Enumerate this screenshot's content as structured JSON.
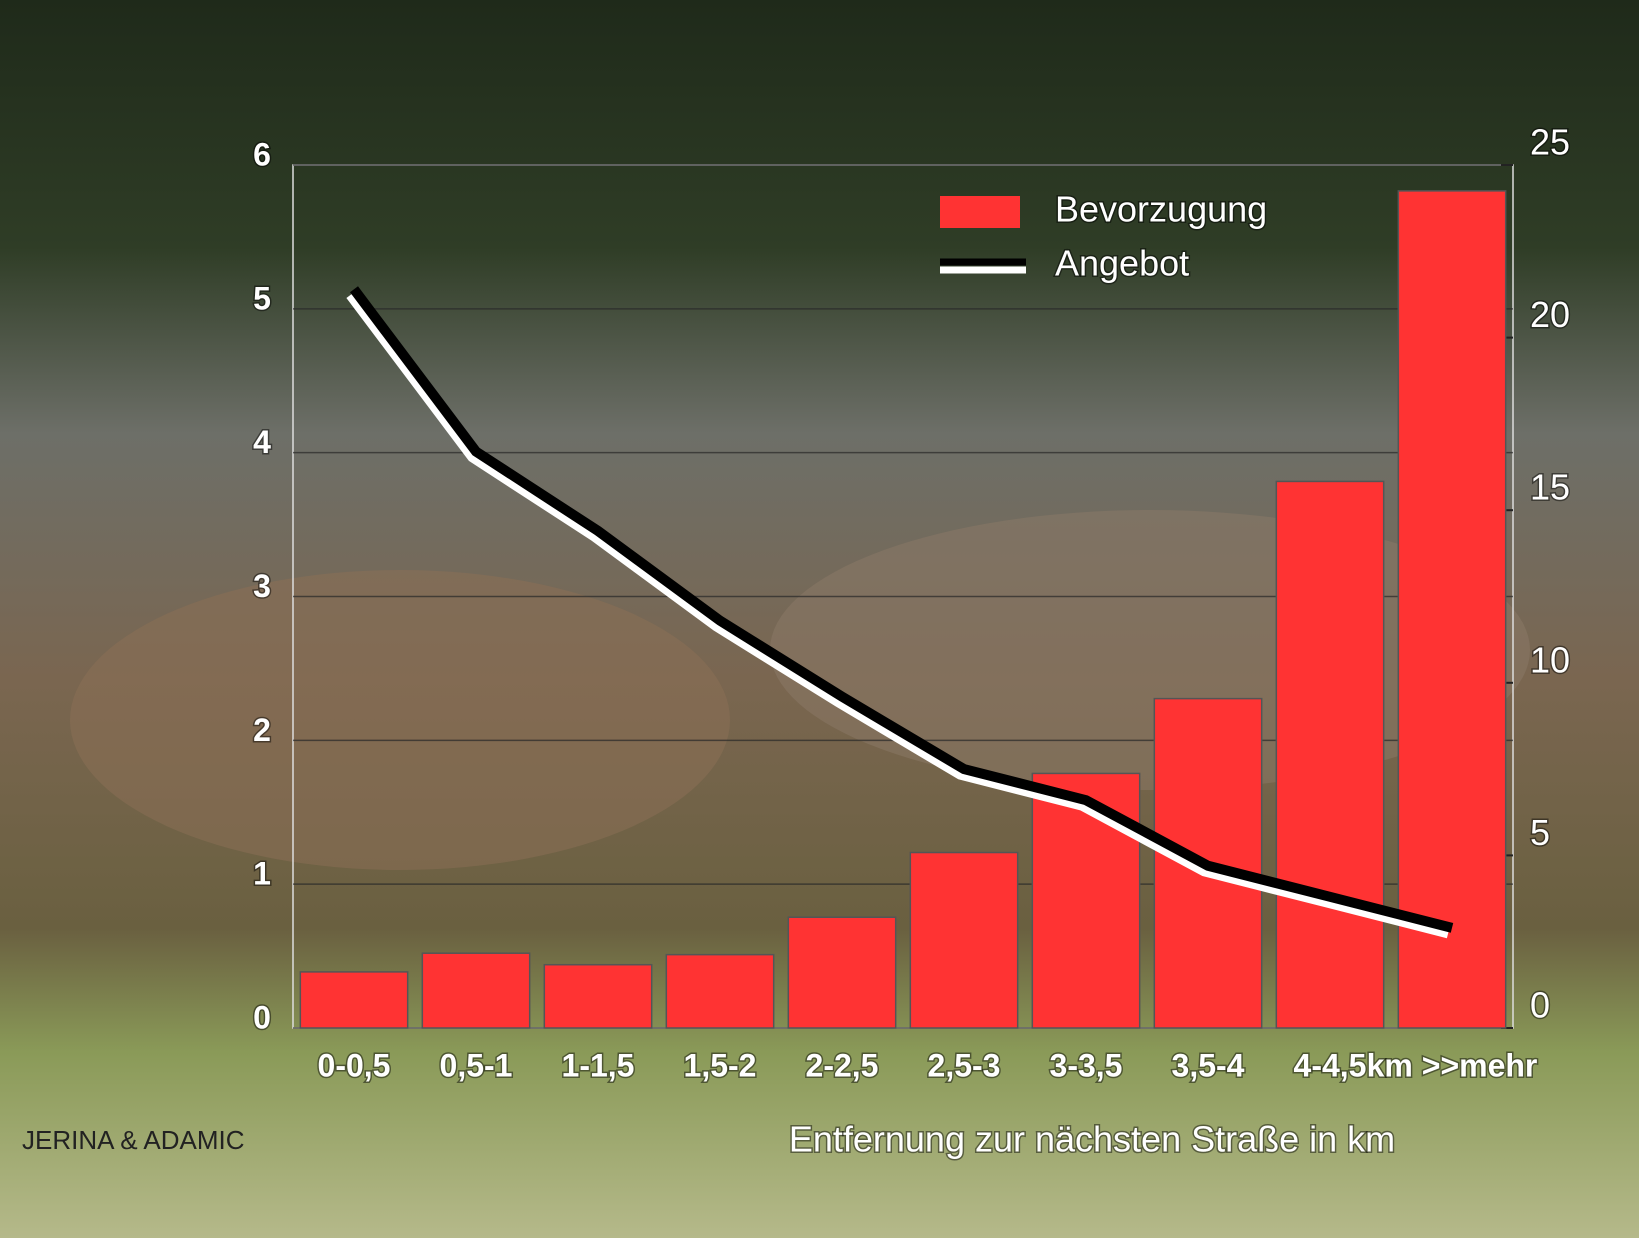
{
  "chart_data": {
    "type": "bar",
    "categories": [
      "0-0,5",
      "0,5-1",
      "1-1,5",
      "1,5-2",
      "2-2,5",
      "2,5-3",
      "3-3,5",
      "3,5-4",
      "4-4,5",
      "km >>mehr"
    ],
    "series": [
      {
        "name": "Bevorzugung",
        "type": "bar",
        "color": "#ff3333",
        "values": [
          0.39,
          0.52,
          0.44,
          0.51,
          0.77,
          1.22,
          1.77,
          2.29,
          3.8,
          5.82
        ]
      },
      {
        "name": "Angebot",
        "type": "line",
        "axis": "y2",
        "color": "#000000",
        "values": [
          21.4,
          16.7,
          14.4,
          11.8,
          9.6,
          7.5,
          6.6,
          4.7,
          3.8,
          2.9
        ]
      }
    ],
    "ylim": [
      0,
      6
    ],
    "yticks": [
      0,
      1,
      2,
      3,
      4,
      5,
      6
    ],
    "y2lim": [
      0,
      25
    ],
    "y2ticks": [
      0,
      5,
      10,
      15,
      20,
      25
    ],
    "grid": true,
    "legend": "top-right",
    "xlabel": "Entfernung zur nächsten Straße in km",
    "credit": "JERINA & ADAMIC"
  }
}
